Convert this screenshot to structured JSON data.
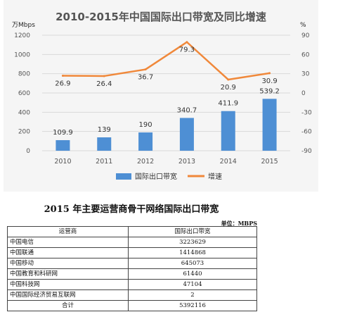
{
  "chart_data": {
    "type": "bar",
    "title": "2010-2015年中国国际出口带宽及同比增速",
    "y_left_unit": "万Mbps",
    "y_right_unit": "%",
    "categories": [
      "2010",
      "2011",
      "2012",
      "2013",
      "2014",
      "2015"
    ],
    "y_left_range": [
      0,
      1200
    ],
    "y_left_ticks": [
      0,
      200,
      400,
      600,
      800,
      1000,
      1200
    ],
    "y_right_range": [
      -90,
      90
    ],
    "y_right_ticks": [
      90,
      60,
      30,
      0,
      -30,
      -60,
      -90
    ],
    "grid": true,
    "legend_position": "bottom",
    "series": [
      {
        "name": "国际出口带宽",
        "kind": "bar",
        "axis": "left",
        "color": "#4e8fd4",
        "values": [
          109.9,
          139,
          190,
          340.7,
          411.9,
          539.2
        ],
        "labels": [
          "109.9",
          "139",
          "190",
          "340.7",
          "411.9",
          "539.2"
        ]
      },
      {
        "name": "增速",
        "kind": "line",
        "axis": "right",
        "color": "#f0883a",
        "values": [
          26.9,
          26.4,
          36.7,
          79.3,
          20.9,
          30.9
        ],
        "labels": [
          "26.9",
          "26.4",
          "36.7",
          "79.3",
          "20.9",
          "30.9"
        ]
      }
    ]
  },
  "table": {
    "title": "2015 年主要运营商骨干网络国际出口带宽",
    "unit": "单位：MBPS",
    "headers": [
      "运营商",
      "国际出口带宽"
    ],
    "rows": [
      {
        "name": "中国电信",
        "value": "3223629"
      },
      {
        "name": "中国联通",
        "value": "1414868"
      },
      {
        "name": "中国移动",
        "value": "645073"
      },
      {
        "name": "中国教育和科研网",
        "value": "61440"
      },
      {
        "name": "中国科技网",
        "value": "47104"
      },
      {
        "name": "中国国际经济贸易互联网",
        "value": "2"
      }
    ],
    "total_label": "合计",
    "total_value": "5392116"
  }
}
